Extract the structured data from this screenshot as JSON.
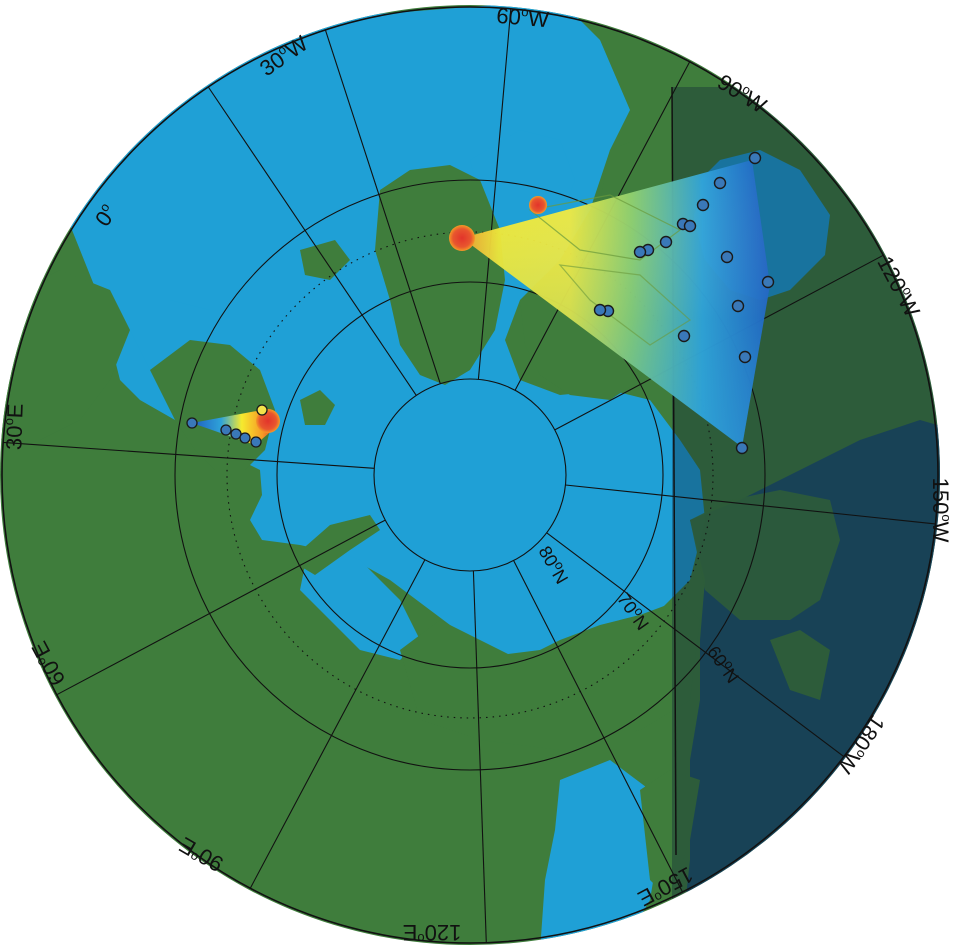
{
  "map": {
    "projection": "north-polar stereographic",
    "colors": {
      "ocean": "#1fa0d6",
      "land": "#3f7d3c",
      "land_edge": "#7fa54a",
      "shade": "#1a3553",
      "grid": "#111111",
      "station_fill": "#3a78b8",
      "station_edge": "#1a1a1a",
      "source": "#e2423a"
    },
    "colorscale": [
      "#1f5cc0",
      "#2ea3d9",
      "#8fd06b",
      "#f6ea2e",
      "#f59a26",
      "#e2342b"
    ],
    "longitude_labels": [
      {
        "value": "0",
        "unit": "o",
        "suffix": ""
      },
      {
        "value": "30",
        "unit": "o",
        "suffix": "W"
      },
      {
        "value": "60",
        "unit": "o",
        "suffix": "W"
      },
      {
        "value": "90",
        "unit": "o",
        "suffix": "W"
      },
      {
        "value": "120",
        "unit": "o",
        "suffix": "W"
      },
      {
        "value": "150",
        "unit": "o",
        "suffix": "W"
      },
      {
        "value": "180",
        "unit": "o",
        "suffix": "W"
      },
      {
        "value": "150",
        "unit": "o",
        "suffix": "E"
      },
      {
        "value": "120",
        "unit": "o",
        "suffix": "E"
      },
      {
        "value": "90",
        "unit": "o",
        "suffix": "E"
      },
      {
        "value": "60",
        "unit": "o",
        "suffix": "E"
      },
      {
        "value": "30",
        "unit": "o",
        "suffix": "E"
      }
    ],
    "latitude_labels": [
      {
        "value": "80",
        "unit": "o",
        "suffix": "N"
      },
      {
        "value": "70",
        "unit": "o",
        "suffix": "N"
      },
      {
        "value": "60",
        "unit": "o",
        "suffix": "N"
      }
    ],
    "stations_west_group_count": 16,
    "stations_east_group_count": 6,
    "source_markers": [
      "west-source-main",
      "west-source-secondary",
      "east-source"
    ]
  }
}
